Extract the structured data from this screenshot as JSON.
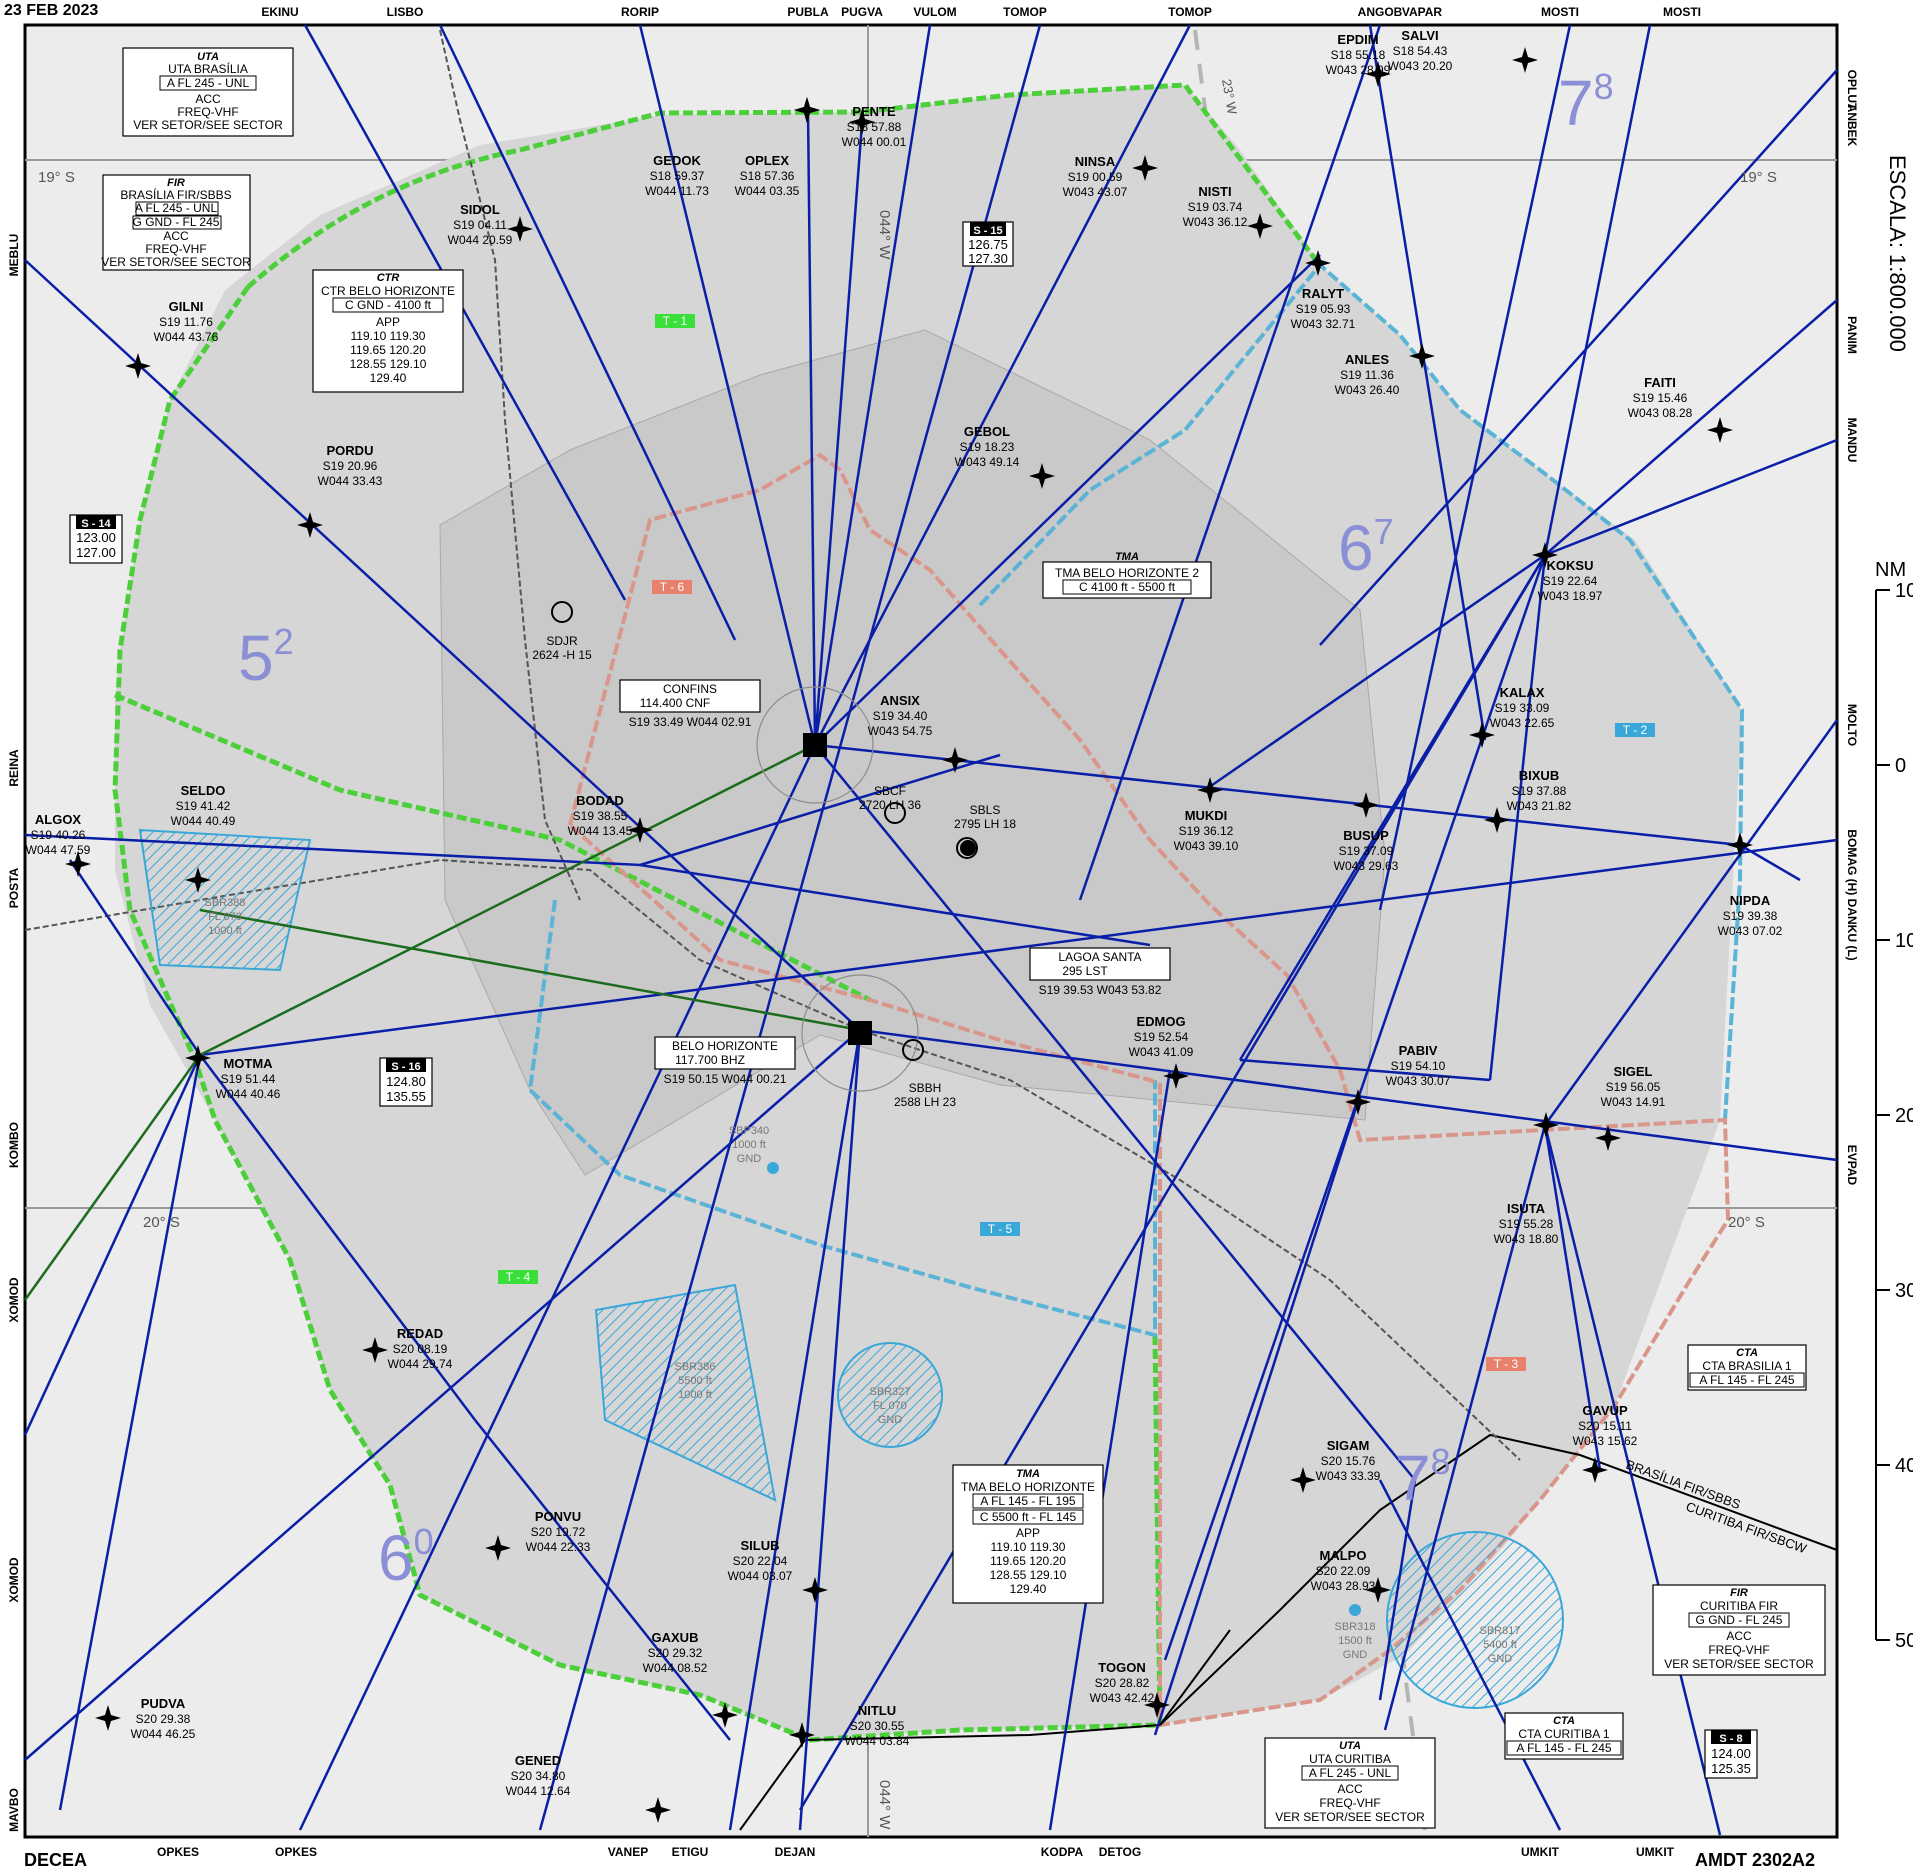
{
  "header": {
    "date": "23 FEB 2023",
    "publisher": "DECEA",
    "amendment": "AMDT 2302A2",
    "scale": "ESCALA: 1:800.000"
  },
  "scale_bar": {
    "unit": "NM",
    "ticks": [
      "10",
      "0",
      "10",
      "20",
      "30",
      "40",
      "50"
    ]
  },
  "graticule": {
    "lat_top": "19° S",
    "lat_bottom": "20° S",
    "lon_top": "044° W",
    "lon_bottom": "044° W",
    "mag_var": "23° W"
  },
  "edge_fixes": {
    "top": [
      "EKINU",
      "LISBO",
      "RORIP",
      "PUBLA",
      "PUGVA",
      "VULOM",
      "TOMOP",
      "TOMOP",
      "ANGOB",
      "VAPAR",
      "MOSTI",
      "MOSTI"
    ],
    "bottom": [
      "OPKES",
      "OPKES",
      "VANEP",
      "ETIGU",
      "DEJAN",
      "KODPA",
      "DETOG",
      "UMKIT",
      "UMKIT"
    ],
    "left": [
      "MEBLU",
      "REINA",
      "POSTA",
      "KOMBO",
      "XOMOD",
      "XOMOD",
      "MAVBO"
    ],
    "right": [
      "OPLUT",
      "ANBEK",
      "PANIM",
      "MANDU",
      "MOLTO",
      "BOMAG (H) DANKU (L)",
      "EVPAD"
    ]
  },
  "sectors": [
    {
      "base": "5",
      "sup": "2"
    },
    {
      "base": "6",
      "sup": "0"
    },
    {
      "base": "6",
      "sup": "7"
    },
    {
      "base": "7",
      "sup": "8"
    },
    {
      "base": "7",
      "sup": "8"
    }
  ],
  "waypoints": [
    {
      "name": "SIDOL",
      "lat": "S19 04.11",
      "lon": "W044 20.59"
    },
    {
      "name": "GEDOK",
      "lat": "S18 59.37",
      "lon": "W044 11.73"
    },
    {
      "name": "OPLEX",
      "lat": "S18 57.36",
      "lon": "W044 03.35"
    },
    {
      "name": "PENTE",
      "lat": "S18 57.88",
      "lon": "W044 00.01"
    },
    {
      "name": "EPDIM",
      "lat": "S18 55.18",
      "lon": "W043 28.99"
    },
    {
      "name": "SALVI",
      "lat": "S18 54.43",
      "lon": "W043 20.20"
    },
    {
      "name": "NINSA",
      "lat": "S19 00.59",
      "lon": "W043 43.07"
    },
    {
      "name": "NISTI",
      "lat": "S19 03.74",
      "lon": "W043 36.12"
    },
    {
      "name": "RALYT",
      "lat": "S19 05.93",
      "lon": "W043 32.71"
    },
    {
      "name": "ANLES",
      "lat": "S19 11.36",
      "lon": "W043 26.40"
    },
    {
      "name": "GILNI",
      "lat": "S19 11.76",
      "lon": "W044 43.76"
    },
    {
      "name": "FAITI",
      "lat": "S19 15.46",
      "lon": "W043 08.28"
    },
    {
      "name": "GEBOL",
      "lat": "S19 18.23",
      "lon": "W043 49.14"
    },
    {
      "name": "PORDU",
      "lat": "S19 20.96",
      "lon": "W044 33.43"
    },
    {
      "name": "KOKSU",
      "lat": "S19 22.64",
      "lon": "W043 18.97"
    },
    {
      "name": "KALAX",
      "lat": "S19 33.09",
      "lon": "W043 22.65"
    },
    {
      "name": "ANSIX",
      "lat": "S19 34.40",
      "lon": "W043 54.75"
    },
    {
      "name": "BIXUB",
      "lat": "S19 37.88",
      "lon": "W043 21.82"
    },
    {
      "name": "BODAD",
      "lat": "S19 38.55",
      "lon": "W044 13.45"
    },
    {
      "name": "MUKDI",
      "lat": "S19 36.12",
      "lon": "W043 39.10"
    },
    {
      "name": "BUSUP",
      "lat": "S19 37.09",
      "lon": "W043 29.63"
    },
    {
      "name": "ALGOX",
      "lat": "S19 40.26",
      "lon": "W044 47.59"
    },
    {
      "name": "SELDO",
      "lat": "S19 41.42",
      "lon": "W044 40.49"
    },
    {
      "name": "NIPDA",
      "lat": "S19 39.38",
      "lon": "W043 07.02"
    },
    {
      "name": "EDMOG",
      "lat": "S19 52.54",
      "lon": "W043 41.09"
    },
    {
      "name": "MOTMA",
      "lat": "S19 51.44",
      "lon": "W044 40.46"
    },
    {
      "name": "PABIV",
      "lat": "S19 54.10",
      "lon": "W043 30.07"
    },
    {
      "name": "SIGEL",
      "lat": "S19 56.05",
      "lon": "W043 14.91"
    },
    {
      "name": "ISUTA",
      "lat": "S19 55.28",
      "lon": "W043 18.80"
    },
    {
      "name": "REDAD",
      "lat": "S20 08.19",
      "lon": "W044 29.74"
    },
    {
      "name": "GAVUP",
      "lat": "S20 15.11",
      "lon": "W043 15.62"
    },
    {
      "name": "SIGAM",
      "lat": "S20 15.76",
      "lon": "W043 33.39"
    },
    {
      "name": "PONVU",
      "lat": "S20 19.72",
      "lon": "W044 22.33"
    },
    {
      "name": "SILUB",
      "lat": "S20 22.04",
      "lon": "W044 03.07"
    },
    {
      "name": "MALPO",
      "lat": "S20 22.09",
      "lon": "W043 28.93"
    },
    {
      "name": "GAXUB",
      "lat": "S20 29.32",
      "lon": "W044 08.52"
    },
    {
      "name": "TOGON",
      "lat": "S20 28.82",
      "lon": "W043 42.42"
    },
    {
      "name": "NITLU",
      "lat": "S20 30.55",
      "lon": "W044 03.84"
    },
    {
      "name": "PUDVA",
      "lat": "S20 29.38",
      "lon": "W044 46.25"
    },
    {
      "name": "GENED",
      "lat": "S20 34.80",
      "lon": "W044 12.64"
    }
  ],
  "navaids": [
    {
      "name": "CONFINS",
      "freq": "114.400",
      "ident": "CNF",
      "coord": "S19 33.49 W044 02.91"
    },
    {
      "name": "BELO HORIZONTE",
      "freq": "117.700",
      "ident": "BHZ",
      "coord": "S19 50.15 W044 00.21"
    },
    {
      "name": "LAGOA SANTA",
      "freq": "295",
      "ident": "LST",
      "coord": "S19 39.53 W043 53.82"
    }
  ],
  "aerodromes": [
    {
      "ident": "SDJR",
      "info": "2624 -H 15"
    },
    {
      "ident": "SBCF",
      "info": "2720 LH 36"
    },
    {
      "ident": "SBLS",
      "info": "2795 LH 18"
    },
    {
      "ident": "SBBH",
      "info": "2588 LH 23"
    }
  ],
  "restricted": [
    {
      "id": "SBR388",
      "alt": "FL 070",
      "lower": "1000 ft"
    },
    {
      "id": "SBP340",
      "alt": "1000 ft",
      "lower": "GND"
    },
    {
      "id": "SBR386",
      "alt": "5500 ft",
      "lower": "1000 ft"
    },
    {
      "id": "SBR327",
      "alt": "FL 070",
      "lower": "GND"
    },
    {
      "id": "SBR318",
      "alt": "1500 ft",
      "lower": "GND"
    },
    {
      "id": "SBR817",
      "alt": "5400 ft",
      "lower": "GND"
    }
  ],
  "frequency_boxes": [
    {
      "id": "S - 15",
      "f1": "126.75",
      "f2": "127.30"
    },
    {
      "id": "S - 14",
      "f1": "123.00",
      "f2": "127.00"
    },
    {
      "id": "S - 16",
      "f1": "124.80",
      "f2": "135.55"
    },
    {
      "id": "S - 8",
      "f1": "124.00",
      "f2": "125.35"
    }
  ],
  "info_boxes": {
    "uta_brasilia": {
      "head": "UTA",
      "l1": "UTA BRASÍLIA",
      "l2": "A  FL 245 - UNL",
      "l3": "ACC",
      "l4": "FREQ-VHF",
      "l5": "VER SETOR/SEE SECTOR"
    },
    "fir_brasilia": {
      "head": "FIR",
      "l1": "BRASÍLIA FIR/SBBS",
      "l2": "A FL 245 - UNL",
      "l3": "G GND - FL 245",
      "l4": "ACC",
      "l5": "FREQ-VHF",
      "l6": "VER SETOR/SEE SECTOR"
    },
    "ctr": {
      "head": "CTR",
      "l1": "CTR BELO HORIZONTE",
      "l2": "C  GND - 4100 ft",
      "l3": "APP",
      "l4": "119.10 119.30",
      "l5": "119.65 120.20",
      "l6": "128.55 129.10",
      "l7": "129.40"
    },
    "tma2": {
      "head": "TMA",
      "l1": "TMA BELO HORIZONTE 2",
      "l2": "C  4100 ft - 5500 ft"
    },
    "tma": {
      "head": "TMA",
      "l1": "TMA BELO HORIZONTE",
      "l2": "A FL 145 - FL 195",
      "l3": "C 5500 ft - FL 145",
      "l4": "APP",
      "l5": "119.10 119.30",
      "l6": "119.65 120.20",
      "l7": "128.55 129.10",
      "l8": "129.40"
    },
    "cta_brasilia": {
      "head": "CTA",
      "l1": "CTA BRASILIA 1",
      "l2": "A  FL 145 - FL 245"
    },
    "fir_curitiba": {
      "head": "FIR",
      "l1": "CURITIBA FIR",
      "l2": "G GND - FL 245",
      "l3": "ACC",
      "l4": "FREQ-VHF",
      "l5": "VER SETOR/SEE SECTOR"
    },
    "cta_curitiba": {
      "head": "CTA",
      "l1": "CTA CURITIBA 1",
      "l2": "A  FL 145 - FL 245"
    },
    "uta_curitiba": {
      "head": "UTA",
      "l1": "UTA CURITIBA",
      "l2": "A  FL 245 - UNL",
      "l3": "ACC",
      "l4": "FREQ-VHF",
      "l5": "VER SETOR/SEE SECTOR"
    }
  },
  "fir_boundary_labels": [
    "BRASÍLIA FIR/SBBS",
    "CURITIBA FIR/SBCW"
  ],
  "tag_labels": [
    "T - 1",
    "T - 6",
    "T - 4",
    "T - 5",
    "T - 2",
    "T - 3"
  ],
  "colors": {
    "route": "#0a1fa8",
    "airway_box": "#1f2fbf",
    "lower_airway_green": "#1d6b1d",
    "sector_boundary": "#4ccf3a",
    "tma_boundary_blue": "#5bb4d6",
    "ctr_boundary_red": "#d9968a",
    "sector_fill": "#d9d9d9",
    "restricted": "#3aa7d9",
    "sector_number": "#8a8fd6"
  }
}
